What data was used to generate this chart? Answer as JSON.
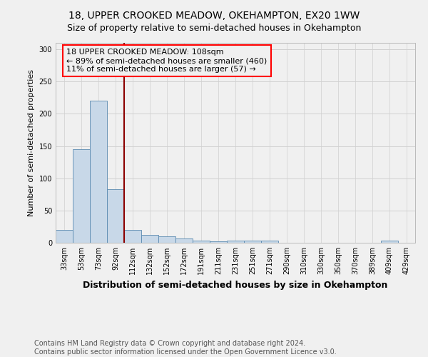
{
  "title": "18, UPPER CROOKED MEADOW, OKEHAMPTON, EX20 1WW",
  "subtitle": "Size of property relative to semi-detached houses in Okehampton",
  "xlabel": "Distribution of semi-detached houses by size in Okehampton",
  "ylabel": "Number of semi-detached properties",
  "footer_line1": "Contains HM Land Registry data © Crown copyright and database right 2024.",
  "footer_line2": "Contains public sector information licensed under the Open Government Licence v3.0.",
  "annotation_line1": "18 UPPER CROOKED MEADOW: 108sqm",
  "annotation_line2": "← 89% of semi-detached houses are smaller (460)",
  "annotation_line3": "11% of semi-detached houses are larger (57) →",
  "bar_color": "#c8d8e8",
  "bar_edge_color": "#5a8ab0",
  "red_line_color": "#8b0000",
  "categories": [
    "33sqm",
    "53sqm",
    "73sqm",
    "92sqm",
    "112sqm",
    "132sqm",
    "152sqm",
    "172sqm",
    "191sqm",
    "211sqm",
    "231sqm",
    "251sqm",
    "271sqm",
    "290sqm",
    "310sqm",
    "330sqm",
    "350sqm",
    "370sqm",
    "389sqm",
    "409sqm",
    "429sqm"
  ],
  "values": [
    20,
    145,
    220,
    83,
    20,
    12,
    10,
    7,
    3,
    2,
    3,
    3,
    3,
    0,
    0,
    0,
    0,
    0,
    0,
    3,
    0
  ],
  "red_line_x": 3.5,
  "ylim": [
    0,
    310
  ],
  "yticks": [
    0,
    50,
    100,
    150,
    200,
    250,
    300
  ],
  "bg_color": "#f0f0f0",
  "title_fontsize": 10,
  "subtitle_fontsize": 9,
  "ylabel_fontsize": 8,
  "xlabel_fontsize": 9,
  "tick_fontsize": 7,
  "annotation_fontsize": 8,
  "footer_fontsize": 7
}
